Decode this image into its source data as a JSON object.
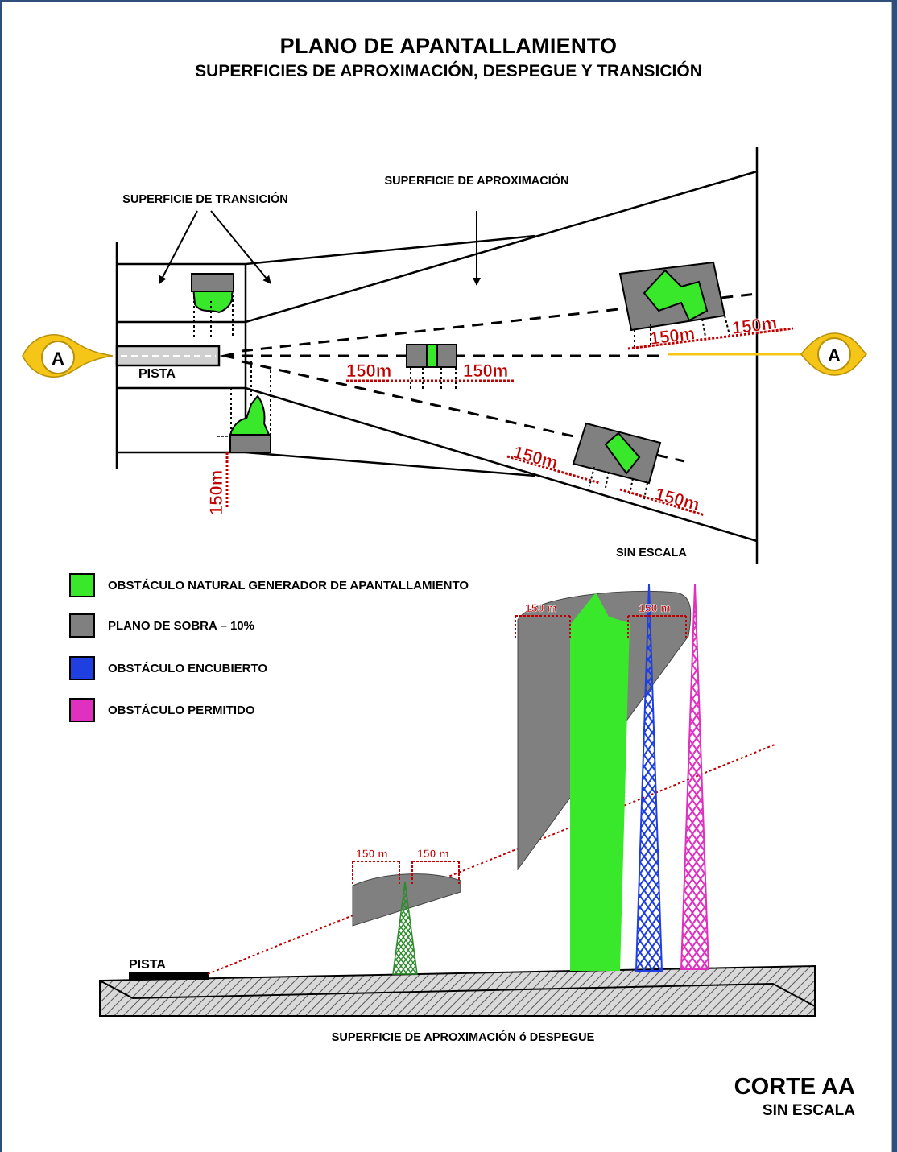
{
  "title": "PLANO DE APANTALLAMIENTO",
  "subtitle": "SUPERFICIES DE APROXIMACIÓN,  DESPEGUE Y TRANSICIÓN",
  "plan": {
    "label_transition": "SUPERFICIE DE TRANSICIÓN",
    "label_approach": "SUPERFICIE DE APROXIMACIÓN",
    "label_runway": "PISTA",
    "section_marker": "A",
    "dimension": "150m",
    "scale_note": "SIN ESCALA"
  },
  "legend": [
    {
      "color": "#39e82a",
      "label": "OBSTÁCULO NATURAL GENERADOR DE APANTALLAMIENTO"
    },
    {
      "color": "#808080",
      "label": "PLANO DE SOBRA – 10%"
    },
    {
      "color": "#1f3fe0",
      "label": "OBSTÁCULO ENCUBIERTO"
    },
    {
      "color": "#e030c0",
      "label": "OBSTÁCULO PERMITIDO"
    }
  ],
  "section": {
    "dimension": "150 m",
    "label_runway": "PISTA",
    "caption": "SUPERFICIE DE APROXIMACIÓN ó DESPEGUE",
    "title": "CORTE AA",
    "scale_note": "SIN ESCALA"
  },
  "colors": {
    "frame": "#2f4f7a",
    "marker": "#f5c518",
    "dimension": "#c00000",
    "shadow": "#808080"
  }
}
